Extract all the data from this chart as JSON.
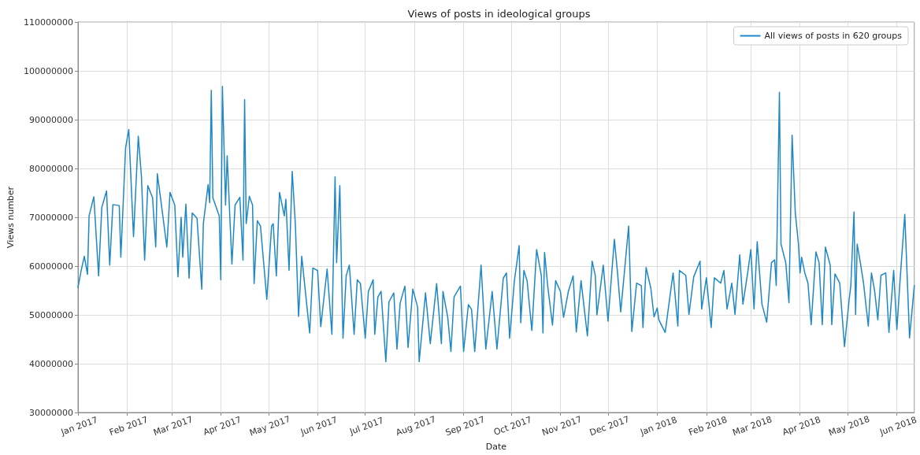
{
  "chart_data": {
    "type": "line",
    "title": "Views of posts in ideological groups",
    "xlabel": "Date",
    "ylabel": "Views number",
    "x": [
      "2017-01-01",
      "2017-01-03",
      "2017-01-05",
      "2017-01-07",
      "2017-01-08",
      "2017-01-11",
      "2017-01-14",
      "2017-01-16",
      "2017-01-19",
      "2017-01-21",
      "2017-01-23",
      "2017-01-27",
      "2017-01-28",
      "2017-01-31",
      "2017-02-02",
      "2017-02-05",
      "2017-02-08",
      "2017-02-10",
      "2017-02-12",
      "2017-02-14",
      "2017-02-17",
      "2017-02-19",
      "2017-02-20",
      "2017-02-22",
      "2017-02-26",
      "2017-02-28",
      "2017-03-03",
      "2017-03-05",
      "2017-03-07",
      "2017-03-08",
      "2017-03-10",
      "2017-03-12",
      "2017-03-14",
      "2017-03-17",
      "2017-03-20",
      "2017-03-21",
      "2017-03-24",
      "2017-03-25",
      "2017-03-26",
      "2017-03-27",
      "2017-03-31",
      "2017-04-01",
      "2017-04-02",
      "2017-04-04",
      "2017-04-05",
      "2017-04-08",
      "2017-04-10",
      "2017-04-13",
      "2017-04-15",
      "2017-04-16",
      "2017-04-17",
      "2017-04-19",
      "2017-04-21",
      "2017-04-22",
      "2017-04-24",
      "2017-04-26",
      "2017-04-30",
      "2017-05-03",
      "2017-05-04",
      "2017-05-06",
      "2017-05-08",
      "2017-05-11",
      "2017-05-12",
      "2017-05-14",
      "2017-05-16",
      "2017-05-18",
      "2017-05-20",
      "2017-05-22",
      "2017-05-27",
      "2017-05-29",
      "2017-06-01",
      "2017-06-03",
      "2017-06-07",
      "2017-06-10",
      "2017-06-12",
      "2017-06-13",
      "2017-06-15",
      "2017-06-16",
      "2017-06-17",
      "2017-06-19",
      "2017-06-21",
      "2017-06-24",
      "2017-06-26",
      "2017-06-28",
      "2017-07-01",
      "2017-07-03",
      "2017-07-06",
      "2017-07-07",
      "2017-07-09",
      "2017-07-11",
      "2017-07-14",
      "2017-07-16",
      "2017-07-19",
      "2017-07-21",
      "2017-07-23",
      "2017-07-26",
      "2017-07-28",
      "2017-07-31",
      "2017-08-03",
      "2017-08-04",
      "2017-08-08",
      "2017-08-11",
      "2017-08-15",
      "2017-08-18",
      "2017-08-19",
      "2017-08-22",
      "2017-08-24",
      "2017-08-26",
      "2017-08-30",
      "2017-09-01",
      "2017-09-04",
      "2017-09-06",
      "2017-09-08",
      "2017-09-12",
      "2017-09-15",
      "2017-09-19",
      "2017-09-22",
      "2017-09-26",
      "2017-09-28",
      "2017-09-30",
      "2017-10-03",
      "2017-10-06",
      "2017-10-07",
      "2017-10-09",
      "2017-10-11",
      "2017-10-14",
      "2017-10-17",
      "2017-10-20",
      "2017-10-21",
      "2017-10-22",
      "2017-10-24",
      "2017-10-27",
      "2017-10-29",
      "2017-11-01",
      "2017-11-03",
      "2017-11-06",
      "2017-11-09",
      "2017-11-11",
      "2017-11-14",
      "2017-11-18",
      "2017-11-21",
      "2017-11-23",
      "2017-11-24",
      "2017-11-28",
      "2017-12-01",
      "2017-12-05",
      "2017-12-07",
      "2017-12-09",
      "2017-12-14",
      "2017-12-16",
      "2017-12-19",
      "2017-12-22",
      "2017-12-23",
      "2017-12-25",
      "2017-12-28",
      "2017-12-30",
      "2018-01-01",
      "2018-01-02",
      "2018-01-06",
      "2018-01-11",
      "2018-01-14",
      "2018-01-15",
      "2018-01-19",
      "2018-01-21",
      "2018-01-24",
      "2018-01-28",
      "2018-01-29",
      "2018-02-01",
      "2018-02-04",
      "2018-02-06",
      "2018-02-10",
      "2018-02-12",
      "2018-02-14",
      "2018-02-17",
      "2018-02-19",
      "2018-02-22",
      "2018-02-24",
      "2018-02-27",
      "2018-03-01",
      "2018-03-03",
      "2018-03-05",
      "2018-03-08",
      "2018-03-11",
      "2018-03-14",
      "2018-03-16",
      "2018-03-17",
      "2018-03-19",
      "2018-03-20",
      "2018-03-23",
      "2018-03-25",
      "2018-03-27",
      "2018-03-29",
      "2018-03-31",
      "2018-04-01",
      "2018-04-02",
      "2018-04-04",
      "2018-04-06",
      "2018-04-08",
      "2018-04-11",
      "2018-04-13",
      "2018-04-15",
      "2018-04-17",
      "2018-04-20",
      "2018-04-21",
      "2018-04-23",
      "2018-04-26",
      "2018-04-29",
      "2018-05-02",
      "2018-05-03",
      "2018-05-05",
      "2018-05-06",
      "2018-05-07",
      "2018-05-09",
      "2018-05-11",
      "2018-05-14",
      "2018-05-16",
      "2018-05-18",
      "2018-05-20",
      "2018-05-22",
      "2018-05-25",
      "2018-05-27",
      "2018-05-30",
      "2018-06-01",
      "2018-06-03",
      "2018-06-06",
      "2018-06-09",
      "2018-06-12"
    ],
    "series": [
      {
        "name": "All views of posts in 620 groups",
        "color": "#1f88c4",
        "values": [
          55600000,
          59100000,
          62000000,
          58300000,
          70300000,
          74200000,
          58000000,
          72000000,
          75400000,
          60200000,
          72600000,
          72400000,
          61800000,
          84200000,
          88000000,
          66000000,
          86600000,
          78300000,
          61200000,
          76500000,
          74000000,
          63900000,
          78900000,
          74000000,
          63900000,
          75100000,
          72500000,
          57800000,
          70000000,
          61800000,
          72700000,
          57500000,
          70900000,
          69800000,
          55300000,
          68700000,
          76700000,
          73000000,
          96000000,
          74000000,
          70300000,
          57200000,
          96800000,
          72500000,
          82600000,
          60400000,
          72500000,
          74100000,
          61200000,
          94100000,
          68700000,
          74300000,
          72500000,
          56400000,
          69300000,
          68200000,
          53200000,
          68200000,
          68700000,
          58000000,
          75100000,
          70300000,
          73700000,
          59100000,
          79400000,
          68400000,
          49700000,
          62000000,
          46300000,
          59600000,
          59100000,
          47600000,
          59400000,
          46000000,
          78300000,
          60700000,
          76500000,
          60200000,
          45200000,
          58000000,
          60200000,
          46000000,
          57200000,
          56400000,
          45200000,
          54800000,
          57200000,
          46000000,
          53700000,
          54800000,
          40400000,
          52700000,
          54500000,
          43000000,
          52400000,
          55900000,
          43300000,
          55300000,
          51600000,
          40400000,
          54500000,
          44100000,
          56400000,
          44100000,
          54800000,
          49500000,
          42500000,
          53700000,
          55900000,
          42500000,
          52100000,
          51100000,
          42500000,
          60200000,
          43000000,
          54800000,
          43000000,
          57500000,
          58600000,
          45200000,
          57000000,
          64200000,
          48400000,
          59100000,
          57000000,
          46800000,
          63400000,
          58000000,
          46300000,
          62800000,
          55900000,
          47900000,
          57000000,
          54800000,
          49500000,
          54800000,
          58000000,
          46500000,
          57000000,
          45700000,
          61000000,
          58000000,
          50000000,
          60200000,
          48700000,
          65500000,
          58600000,
          50600000,
          68200000,
          46600000,
          56500000,
          56000000,
          47400000,
          59700000,
          55400000,
          49600000,
          51400000,
          49000000,
          46400000,
          58600000,
          47700000,
          59100000,
          58100000,
          50100000,
          57800000,
          61000000,
          51200000,
          57600000,
          47400000,
          57600000,
          56500000,
          59100000,
          51200000,
          56500000,
          50100000,
          62300000,
          52200000,
          58600000,
          63400000,
          51200000,
          65000000,
          52200000,
          48500000,
          60700000,
          61300000,
          56000000,
          95600000,
          64500000,
          60700000,
          52500000,
          86800000,
          70900000,
          64500000,
          58600000,
          61800000,
          58600000,
          56500000,
          48000000,
          62900000,
          60700000,
          48000000,
          63900000,
          60200000,
          48000000,
          58400000,
          56500000,
          43500000,
          53300000,
          56000000,
          71100000,
          50100000,
          64500000,
          60700000,
          56500000,
          47700000,
          58600000,
          54900000,
          49000000,
          58100000,
          58600000,
          46400000,
          59100000,
          47000000,
          57000000,
          70600000,
          45300000,
          56000000
        ]
      }
    ],
    "xlim": [
      "2017-01-01",
      "2018-06-12"
    ],
    "xticks": [
      {
        "value": "2017-01-01",
        "label": "Jan 2017"
      },
      {
        "value": "2017-02-01",
        "label": "Feb 2017"
      },
      {
        "value": "2017-03-01",
        "label": "Mar 2017"
      },
      {
        "value": "2017-04-01",
        "label": "Apr 2017"
      },
      {
        "value": "2017-05-01",
        "label": "May 2017"
      },
      {
        "value": "2017-06-01",
        "label": "Jun 2017"
      },
      {
        "value": "2017-07-01",
        "label": "Jul 2017"
      },
      {
        "value": "2017-08-01",
        "label": "Aug 2017"
      },
      {
        "value": "2017-09-01",
        "label": "Sep 2017"
      },
      {
        "value": "2017-10-01",
        "label": "Oct 2017"
      },
      {
        "value": "2017-11-01",
        "label": "Nov 2017"
      },
      {
        "value": "2017-12-01",
        "label": "Dec 2017"
      },
      {
        "value": "2018-01-01",
        "label": "Jan 2018"
      },
      {
        "value": "2018-02-01",
        "label": "Feb 2018"
      },
      {
        "value": "2018-03-01",
        "label": "Mar 2018"
      },
      {
        "value": "2018-04-01",
        "label": "Apr 2018"
      },
      {
        "value": "2018-05-01",
        "label": "May 2018"
      },
      {
        "value": "2018-06-01",
        "label": "Jun 2018"
      }
    ],
    "ylim": [
      30000000,
      110000000
    ],
    "yticks": [
      30000000,
      40000000,
      50000000,
      60000000,
      70000000,
      80000000,
      90000000,
      100000000,
      110000000
    ],
    "grid": true,
    "legend": "top right",
    "marker": "none",
    "line_style": "solid"
  }
}
